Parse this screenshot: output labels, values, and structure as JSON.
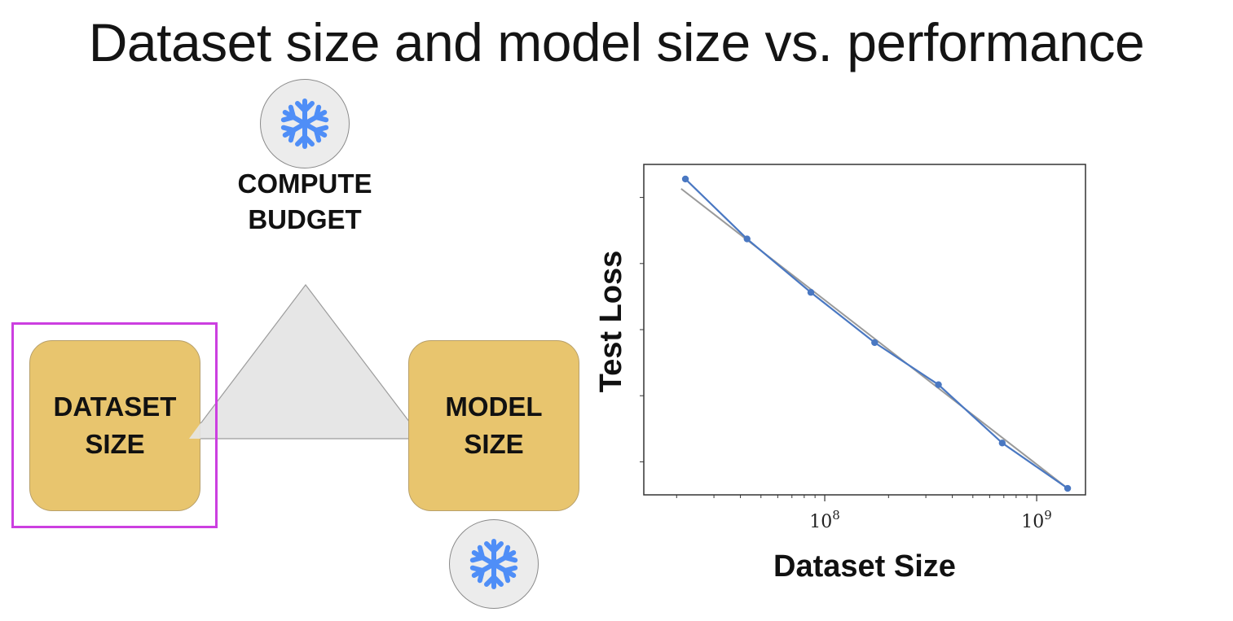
{
  "slide": {
    "title": "Dataset size and model size vs. performance"
  },
  "diagram": {
    "compute_budget": {
      "line1": "COMPUTE",
      "line2": "BUDGET",
      "icon": "snowflake-icon"
    },
    "dataset_size": {
      "line1": "DATASET",
      "line2": "SIZE"
    },
    "model_size": {
      "line1": "MODEL",
      "line2": "SIZE",
      "icon": "snowflake-icon"
    },
    "highlighted": "dataset_size",
    "colors": {
      "box": "#e8c56e",
      "highlight": "#cc3fe0",
      "snowflake": "#4f8ef7",
      "triangle": "#e6e6e6"
    }
  },
  "chart_data": {
    "type": "line",
    "xlabel": "Dataset Size",
    "ylabel": "Test Loss",
    "xscale": "log",
    "x_tick_labels": [
      {
        "value": 100000000,
        "base": "10",
        "exp": "8"
      },
      {
        "value": 1000000000,
        "base": "10",
        "exp": "9"
      }
    ],
    "xlim": [
      14000000,
      1700000000
    ],
    "ylim": [
      0,
      1
    ],
    "series": [
      {
        "x": [
          22000000,
          43000000,
          86000000,
          172000000,
          344000000,
          688000000,
          1400000000
        ],
        "values": [
          0.965,
          0.78,
          0.615,
          0.46,
          0.33,
          0.15,
          0.01
        ],
        "color": "#4a78c2"
      },
      {
        "x": [
          21000000,
          1400000000
        ],
        "values": [
          0.935,
          0.01
        ],
        "color": "#9a9a9a"
      }
    ],
    "grid": false,
    "legend": "none"
  }
}
